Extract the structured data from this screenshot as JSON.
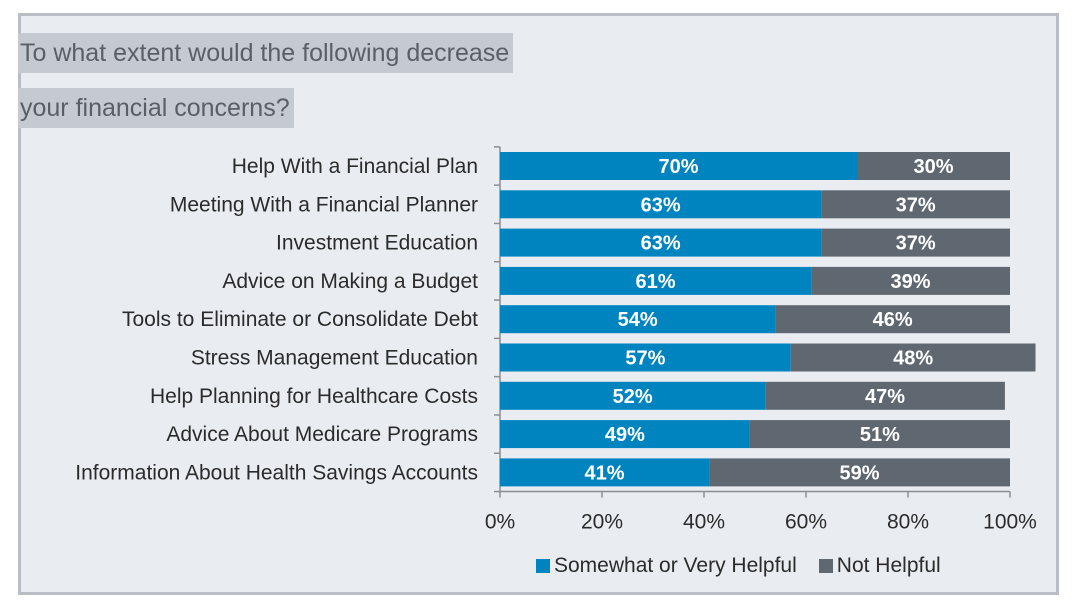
{
  "title": [
    "To what extent would the following decrease",
    "your financial concerns?"
  ],
  "colors": {
    "helpful": "#0084c0",
    "not_helpful": "#5f6870",
    "axis": "#8a8f96"
  },
  "legend": [
    {
      "label": "Somewhat or Very Helpful",
      "color": "#0084c0"
    },
    {
      "label": "Not Helpful",
      "color": "#5f6870"
    }
  ],
  "chart_data": {
    "type": "bar",
    "orientation": "horizontal",
    "stacked": true,
    "categories": [
      "Help With a Financial Plan",
      "Meeting With a Financial Planner",
      "Investment Education",
      "Advice on Making a Budget",
      "Tools to Eliminate or Consolidate Debt",
      "Stress Management Education",
      "Help Planning for Healthcare Costs",
      "Advice About Medicare Programs",
      "Information About Health Savings Accounts"
    ],
    "series": [
      {
        "name": "Somewhat or Very Helpful",
        "values": [
          70,
          63,
          63,
          61,
          54,
          57,
          52,
          49,
          41
        ],
        "labels": [
          "70%",
          "63%",
          "63%",
          "61%",
          "54%",
          "57%",
          "52%",
          "49%",
          "41%"
        ]
      },
      {
        "name": "Not Helpful",
        "values": [
          30,
          37,
          37,
          39,
          46,
          48,
          47,
          51,
          59
        ],
        "labels": [
          "30%",
          "37%",
          "37%",
          "39%",
          "46%",
          "48%",
          "47%",
          "51%",
          "59%"
        ]
      }
    ],
    "xlim": [
      0,
      100
    ],
    "xticks": [
      "0%",
      "20%",
      "40%",
      "60%",
      "80%",
      "100%"
    ],
    "grid": false,
    "legend_position": "bottom-right"
  }
}
